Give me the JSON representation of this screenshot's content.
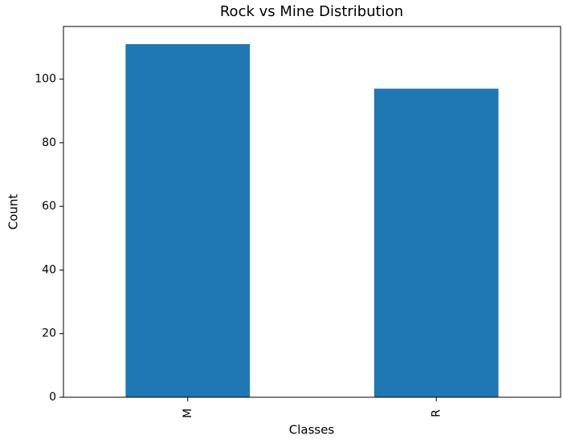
{
  "chart_data": {
    "type": "bar",
    "title": "Rock vs Mine Distribution",
    "x_label": "Classes",
    "y_label": "Count",
    "categories": [
      "M",
      "R"
    ],
    "values": [
      111,
      97
    ],
    "color": "#1f77b4",
    "ylim": [
      0,
      116.55
    ],
    "yticks": [
      0,
      20,
      40,
      60,
      80,
      100
    ],
    "grid": false
  }
}
